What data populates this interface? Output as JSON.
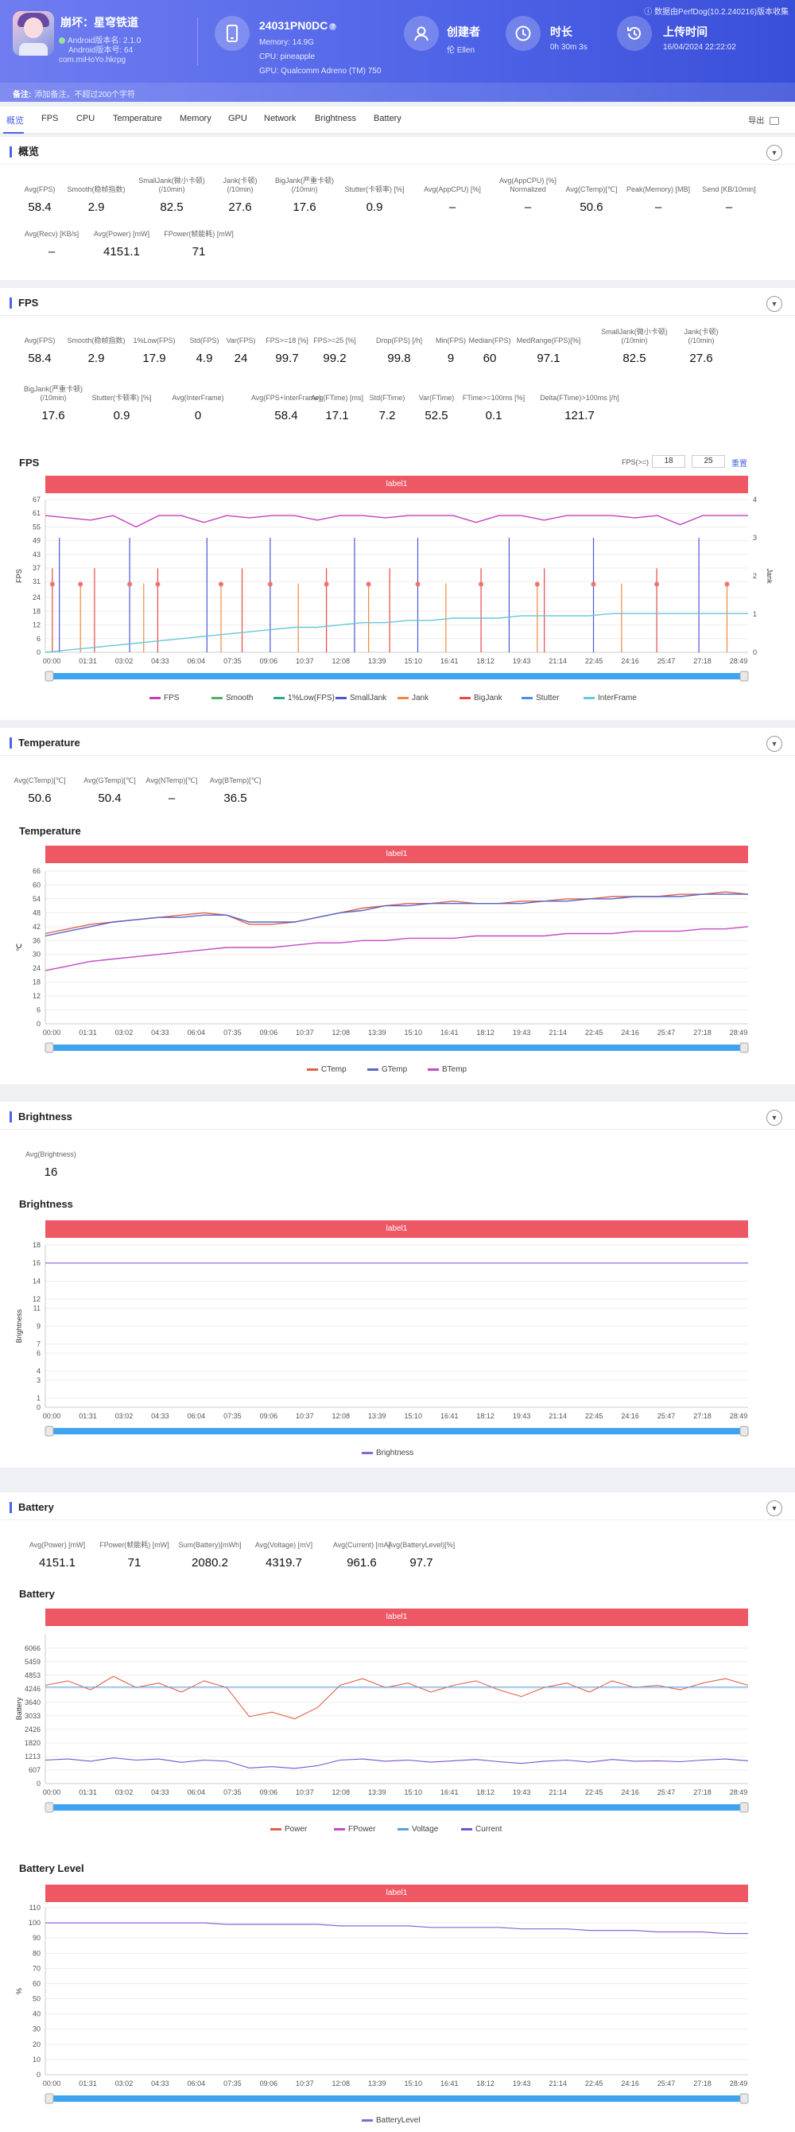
{
  "header": {
    "app_name": "崩坏：星穹铁道",
    "android_ver_line": "Android版本名: 2.1.0",
    "android_code_line": "Android版本号: 64",
    "package": "com.miHoYo.hkrpg",
    "device_name": "24031PN0DC",
    "memory": "Memory: 14.9G",
    "cpu": "CPU: pineapple",
    "gpu": "GPU: Qualcomm Adreno (TM) 750",
    "creator_title": "创建者",
    "creator_value": "伦 Ellen",
    "duration_title": "时长",
    "duration_value": "0h 30m 3s",
    "upload_title": "上传时间",
    "upload_value": "16/04/2024 22:22:02",
    "top_tag": "数据由PerfDog(10.2.240216)版本收集",
    "note_label": "备注:",
    "note_text": "添加备注，不超过200个字符"
  },
  "tabs": [
    "概览",
    "FPS",
    "CPU",
    "Temperature",
    "Memory",
    "GPU",
    "Network",
    "Brightness",
    "Battery"
  ],
  "export_label": "导出",
  "overview": {
    "title": "概览",
    "row1": [
      {
        "label": "Avg(FPS)",
        "value": "58.4"
      },
      {
        "label": "Smooth(稳帧指数)",
        "value": "2.9"
      },
      {
        "label": "SmallJank(微小卡顿)\n(/10min)",
        "value": "82.5"
      },
      {
        "label": "Jank(卡顿)\n(/10min)",
        "value": "27.6"
      },
      {
        "label": "BigJank(严重卡顿)\n(/10min)",
        "value": "17.6"
      },
      {
        "label": "Stutter(卡顿率) [%]",
        "value": "0.9"
      },
      {
        "label": "Avg(AppCPU) [%]",
        "value": "–"
      },
      {
        "label": "Avg(AppCPU) [%]\nNormalized",
        "value": "–"
      },
      {
        "label": "Avg(CTemp)[℃]",
        "value": "50.6"
      },
      {
        "label": "Peak(Memory) [MB]",
        "value": "–"
      },
      {
        "label": "Send [KB/10min]",
        "value": "–"
      }
    ],
    "row2": [
      {
        "label": "Avg(Recv) [KB/s]",
        "value": "–"
      },
      {
        "label": "Avg(Power) [mW]",
        "value": "4151.1"
      },
      {
        "label": "FPower(帧能耗) [mW]",
        "value": "71"
      }
    ]
  },
  "fps": {
    "title": "FPS",
    "row1": [
      {
        "label": "Avg(FPS)",
        "value": "58.4"
      },
      {
        "label": "Smooth(稳帧指数)",
        "value": "2.9"
      },
      {
        "label": "1%Low(FPS)",
        "value": "17.9"
      },
      {
        "label": "Std(FPS)",
        "value": "4.9"
      },
      {
        "label": "Var(FPS)",
        "value": "24"
      },
      {
        "label": "FPS>=18 [%]",
        "value": "99.7"
      },
      {
        "label": "FPS>=25 [%]",
        "value": "99.2"
      },
      {
        "label": "Drop(FPS) [/h]",
        "value": "99.8"
      },
      {
        "label": "Min(FPS)",
        "value": "9"
      },
      {
        "label": "Median(FPS)",
        "value": "60"
      },
      {
        "label": "MedRange(FPS)[%]",
        "value": "97.1"
      },
      {
        "label": "SmallJank(微小卡顿)\n(/10min)",
        "value": "82.5"
      },
      {
        "label": "Jank(卡顿)\n(/10min)",
        "value": "27.6"
      }
    ],
    "row2": [
      {
        "label": "BigJank(严重卡顿)\n(/10min)",
        "value": "17.6"
      },
      {
        "label": "Stutter(卡顿率) [%]",
        "value": "0.9"
      },
      {
        "label": "Avg(InterFrame)",
        "value": "0"
      },
      {
        "label": "Avg(FPS+InterFrame)",
        "value": "58.4"
      },
      {
        "label": "Avg(FTime) [ms]",
        "value": "17.1"
      },
      {
        "label": "Std(FTime)",
        "value": "7.2"
      },
      {
        "label": "Var(FTime)",
        "value": "52.5"
      },
      {
        "label": "FTime>=100ms [%]",
        "value": "0.1"
      },
      {
        "label": "Delta(FTime)>100ms [/h]",
        "value": "121.7"
      }
    ],
    "chart_title": "FPS",
    "label_bar": "label1",
    "fps_ge_label": "FPS(>=)",
    "fps_threshold_1": "18",
    "fps_threshold_2": "25",
    "reset_label": "重置"
  },
  "temperature": {
    "title": "Temperature",
    "stats": [
      {
        "label": "Avg(CTemp)[℃]",
        "value": "50.6"
      },
      {
        "label": "Avg(GTemp)[℃]",
        "value": "50.4"
      },
      {
        "label": "Avg(NTemp)[℃]",
        "value": "–"
      },
      {
        "label": "Avg(BTemp)[℃]",
        "value": "36.5"
      }
    ],
    "chart_title": "Temperature",
    "label_bar": "label1"
  },
  "brightness": {
    "title": "Brightness",
    "stats": [
      {
        "label": "Avg(Brightness)",
        "value": "16"
      }
    ],
    "chart_title": "Brightness",
    "label_bar": "label1"
  },
  "battery": {
    "title": "Battery",
    "stats": [
      {
        "label": "Avg(Power) [mW]",
        "value": "4151.1"
      },
      {
        "label": "FPower(帧能耗) [mW]",
        "value": "71"
      },
      {
        "label": "Sum(Battery)[mWh]",
        "value": "2080.2"
      },
      {
        "label": "Avg(Voltage) [mV]",
        "value": "4319.7"
      },
      {
        "label": "Avg(Current) [mA]",
        "value": "961.6"
      },
      {
        "label": "Avg(BatteryLevel)[%]",
        "value": "97.7"
      }
    ],
    "chart_title": "Battery",
    "label_bar": "label1",
    "level_chart_title": "Battery Level",
    "level_label_bar": "label1"
  },
  "colors": {
    "accent": "#4b63e8",
    "label_bar": "#ee5864",
    "slider": "#3fa3f0"
  },
  "chart_data": [
    {
      "type": "line",
      "id": "fps",
      "x_ticks": [
        "00:00",
        "01:31",
        "03:02",
        "04:33",
        "06:04",
        "07:35",
        "09:06",
        "10:37",
        "12:08",
        "13:39",
        "15:10",
        "16:41",
        "18:12",
        "19:43",
        "21:14",
        "22:45",
        "24:16",
        "25:47",
        "27:18",
        "28:49"
      ],
      "ylabel": "FPS",
      "y_ticks": [
        0,
        6,
        12,
        18,
        24,
        31,
        37,
        43,
        49,
        55,
        61,
        67
      ],
      "ylim": [
        0,
        67
      ],
      "y2label": "Jank",
      "y2_ticks": [
        0,
        1,
        2,
        3,
        4
      ],
      "y2lim": [
        0,
        4
      ],
      "legend": [
        "FPS",
        "Smooth",
        "1%Low(FPS)",
        "SmallJank",
        "Jank",
        "BigJank",
        "Stutter",
        "InterFrame"
      ],
      "legend_colors": [
        "#c43dbf",
        "#52b06a",
        "#2ea88a",
        "#4d56d6",
        "#f08a3a",
        "#e84848",
        "#4a8ee8",
        "#66c8d8"
      ],
      "series": [
        {
          "name": "FPS",
          "values": [
            60,
            59,
            58,
            60,
            55,
            60,
            60,
            57,
            60,
            59,
            60,
            60,
            58,
            60,
            60,
            59,
            60,
            60,
            60,
            57,
            60,
            60,
            58,
            60,
            60,
            60,
            59,
            60,
            56,
            60,
            60,
            60
          ]
        },
        {
          "name": "InterFrame",
          "values": [
            0,
            1,
            2,
            3,
            4,
            5,
            6,
            7,
            8,
            9,
            10,
            11,
            11,
            12,
            13,
            13,
            14,
            14,
            15,
            15,
            15,
            16,
            16,
            16,
            16,
            17,
            17,
            17,
            17,
            17,
            17,
            17
          ]
        }
      ]
    },
    {
      "type": "line",
      "id": "temperature",
      "x_ticks": [
        "00:00",
        "01:31",
        "03:02",
        "04:33",
        "06:04",
        "07:35",
        "09:06",
        "10:37",
        "12:08",
        "13:39",
        "15:10",
        "16:41",
        "18:12",
        "19:43",
        "21:14",
        "22:45",
        "24:16",
        "25:47",
        "27:18",
        "28:49"
      ],
      "ylabel": "℃",
      "y_ticks": [
        0,
        6,
        12,
        18,
        24,
        30,
        36,
        42,
        48,
        54,
        60,
        66
      ],
      "ylim": [
        0,
        66
      ],
      "legend": [
        "CTemp",
        "GTemp",
        "BTemp"
      ],
      "legend_colors": [
        "#e0604a",
        "#5566c8",
        "#c44ac4"
      ],
      "series": [
        {
          "name": "CTemp",
          "values": [
            39,
            41,
            43,
            44,
            45,
            46,
            47,
            48,
            47,
            43,
            43,
            44,
            46,
            48,
            50,
            51,
            52,
            52,
            53,
            52,
            52,
            53,
            53,
            54,
            54,
            55,
            55,
            55,
            56,
            56,
            57,
            56
          ]
        },
        {
          "name": "GTemp",
          "values": [
            38,
            40,
            42,
            44,
            45,
            46,
            46,
            47,
            47,
            44,
            44,
            44,
            46,
            48,
            49,
            51,
            51,
            52,
            52,
            52,
            52,
            52,
            53,
            53,
            54,
            54,
            55,
            55,
            55,
            56,
            56,
            56
          ]
        },
        {
          "name": "BTemp",
          "values": [
            23,
            25,
            27,
            28,
            29,
            30,
            31,
            32,
            33,
            33,
            33,
            34,
            35,
            35,
            36,
            36,
            37,
            37,
            37,
            38,
            38,
            38,
            38,
            39,
            39,
            39,
            40,
            40,
            40,
            41,
            41,
            42
          ]
        }
      ]
    },
    {
      "type": "line",
      "id": "brightness",
      "x_ticks": [
        "00:00",
        "01:31",
        "03:02",
        "04:33",
        "06:04",
        "07:35",
        "09:06",
        "10:37",
        "12:08",
        "13:39",
        "15:10",
        "16:41",
        "18:12",
        "19:43",
        "21:14",
        "22:45",
        "24:16",
        "25:47",
        "27:18",
        "28:49"
      ],
      "ylabel": "Brightness",
      "y_ticks": [
        0,
        1,
        3,
        4,
        6,
        7,
        9,
        11,
        12,
        14,
        16,
        18
      ],
      "ylim": [
        0,
        18
      ],
      "legend": [
        "Brightness"
      ],
      "legend_colors": [
        "#8a64d8"
      ],
      "series": [
        {
          "name": "Brightness",
          "values": [
            16,
            16,
            16,
            16,
            16,
            16,
            16,
            16,
            16,
            16,
            16,
            16,
            16,
            16,
            16,
            16,
            16,
            16,
            16,
            16,
            16,
            16,
            16,
            16,
            16,
            16,
            16,
            16,
            16,
            16,
            16,
            16
          ]
        }
      ]
    },
    {
      "type": "line",
      "id": "battery",
      "x_ticks": [
        "00:00",
        "01:31",
        "03:02",
        "04:33",
        "06:04",
        "07:35",
        "09:06",
        "10:37",
        "12:08",
        "13:39",
        "15:10",
        "16:41",
        "18:12",
        "19:43",
        "21:14",
        "22:45",
        "24:16",
        "25:47",
        "27:18",
        "28:49"
      ],
      "ylabel": "Battery",
      "y_ticks": [
        0,
        607,
        1213,
        1820,
        2426,
        3033,
        3640,
        4246,
        4853,
        5459,
        6066
      ],
      "ylim": [
        0,
        6700
      ],
      "legend": [
        "Power",
        "FPower",
        "Voltage",
        "Current"
      ],
      "legend_colors": [
        "#e0604a",
        "#c44ac4",
        "#5aa0e0",
        "#7a52d0"
      ],
      "series": [
        {
          "name": "Power",
          "values": [
            4400,
            4600,
            4200,
            4800,
            4300,
            4500,
            4100,
            4600,
            4300,
            3000,
            3200,
            2900,
            3400,
            4400,
            4700,
            4300,
            4500,
            4100,
            4400,
            4600,
            4200,
            3900,
            4300,
            4500,
            4100,
            4600,
            4300,
            4400,
            4200,
            4500,
            4700,
            4400
          ]
        },
        {
          "name": "Voltage",
          "values": [
            4320,
            4320,
            4320,
            4320,
            4320,
            4320,
            4320,
            4320,
            4320,
            4320,
            4320,
            4320,
            4320,
            4320,
            4320,
            4320,
            4320,
            4320,
            4320,
            4320,
            4320,
            4320,
            4320,
            4320,
            4320,
            4320,
            4320,
            4320,
            4320,
            4320,
            4320,
            4320
          ]
        },
        {
          "name": "Current",
          "values": [
            1050,
            1100,
            1000,
            1150,
            1050,
            1100,
            950,
            1050,
            1000,
            700,
            760,
            680,
            800,
            1050,
            1100,
            1000,
            1050,
            960,
            1020,
            1080,
            980,
            900,
            1000,
            1050,
            960,
            1080,
            1000,
            1020,
            980,
            1050,
            1100,
            1020
          ]
        }
      ]
    },
    {
      "type": "line",
      "id": "battery_level",
      "x_ticks": [
        "00:00",
        "01:31",
        "03:02",
        "04:33",
        "06:04",
        "07:35",
        "09:06",
        "10:37",
        "12:08",
        "13:39",
        "15:10",
        "16:41",
        "18:12",
        "19:43",
        "21:14",
        "22:45",
        "24:16",
        "25:47",
        "27:18",
        "28:49"
      ],
      "ylabel": "%",
      "y_ticks": [
        0,
        10,
        20,
        30,
        40,
        50,
        60,
        70,
        80,
        90,
        100,
        110
      ],
      "ylim": [
        0,
        110
      ],
      "legend": [
        "BatteryLevel"
      ],
      "legend_colors": [
        "#8a64d8"
      ],
      "series": [
        {
          "name": "BatteryLevel",
          "values": [
            100,
            100,
            100,
            100,
            100,
            100,
            100,
            100,
            99,
            99,
            99,
            99,
            99,
            98,
            98,
            98,
            98,
            97,
            97,
            97,
            97,
            96,
            96,
            96,
            95,
            95,
            95,
            94,
            94,
            94,
            93,
            93
          ]
        }
      ]
    }
  ]
}
